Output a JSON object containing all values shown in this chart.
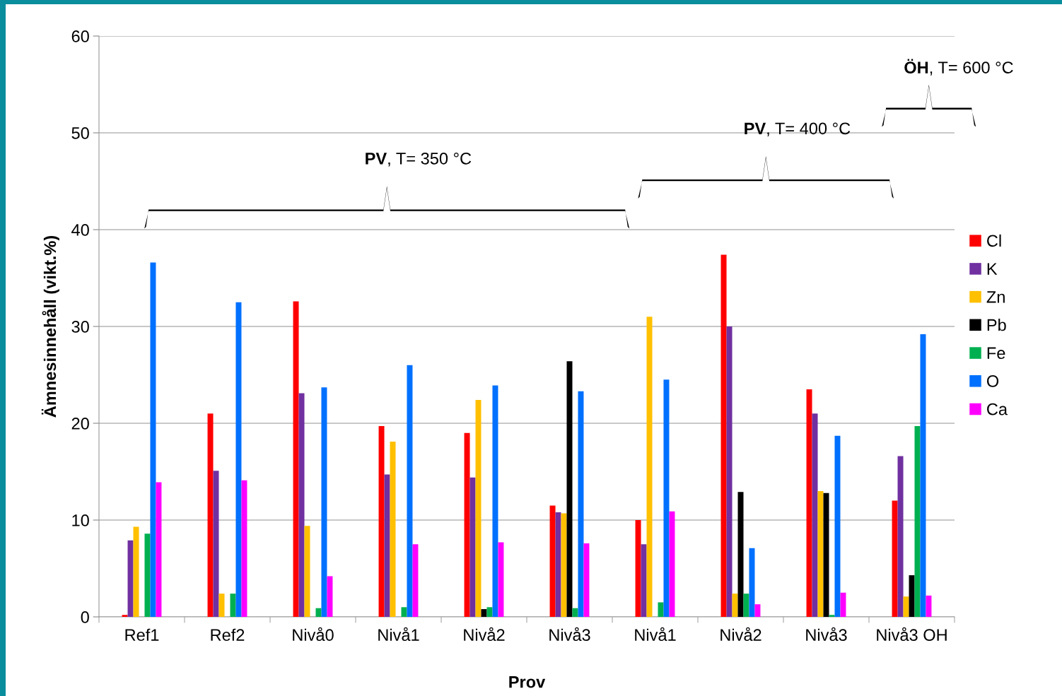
{
  "chart_data": {
    "type": "bar",
    "xlabel": "Prov",
    "ylabel": "Ämnesinnehåll (vikt.%)",
    "categories": [
      "Ref1",
      "Ref2",
      "Nivå0",
      "Nivå1",
      "Nivå2",
      "Nivå3",
      "Nivå1",
      "Nivå2",
      "Nivå3",
      "Nivå3 OH"
    ],
    "series": [
      {
        "name": "Cl",
        "color": "#ff0000",
        "values": [
          0.2,
          21.0,
          32.6,
          19.7,
          19.0,
          11.5,
          10.0,
          37.4,
          23.5,
          12.0
        ]
      },
      {
        "name": "K",
        "color": "#7030a0",
        "values": [
          7.9,
          15.1,
          23.1,
          14.7,
          14.4,
          10.8,
          7.5,
          30.0,
          21.0,
          16.6
        ]
      },
      {
        "name": "Zn",
        "color": "#ffc000",
        "values": [
          9.3,
          2.4,
          9.4,
          18.1,
          22.4,
          10.7,
          31.0,
          2.4,
          13.0,
          2.1
        ]
      },
      {
        "name": "Pb",
        "color": "#000000",
        "values": [
          0,
          0,
          0,
          0,
          0.8,
          26.4,
          0,
          12.9,
          12.8,
          4.3
        ]
      },
      {
        "name": "Fe",
        "color": "#00b050",
        "values": [
          8.6,
          2.4,
          0.9,
          1.0,
          1.0,
          0.9,
          1.5,
          2.4,
          0.2,
          19.7
        ]
      },
      {
        "name": "O",
        "color": "#0070ff",
        "values": [
          36.6,
          32.5,
          23.7,
          26.0,
          23.9,
          23.3,
          24.5,
          7.1,
          18.7,
          29.2
        ]
      },
      {
        "name": "Ca",
        "color": "#ff00ff",
        "values": [
          13.9,
          14.1,
          4.2,
          7.5,
          7.7,
          7.6,
          10.9,
          1.3,
          2.5,
          2.2
        ]
      }
    ],
    "annotations": [
      "PV, T= 350 °C",
      "PV, T= 400 °C",
      "ÖH, T= 600 °C"
    ],
    "ylim": [
      0,
      60
    ],
    "yticks": [
      0,
      10,
      20,
      30,
      40,
      50,
      60
    ],
    "grid": "y",
    "legend": "right"
  }
}
